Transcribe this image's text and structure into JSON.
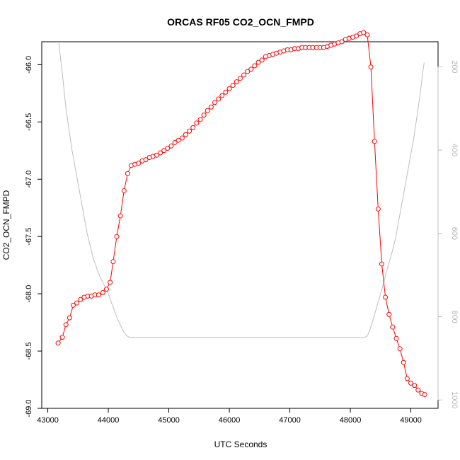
{
  "chart_data": {
    "type": "line",
    "title": "ORCAS RF05 CO2_OCN_FMPD",
    "xlabel": "UTC Seconds",
    "ylabel": "CO2_OCN_FMPD",
    "xlim": [
      42900,
      49450
    ],
    "ylim": [
      -69.0,
      -65.8
    ],
    "x_ticks": [
      43000,
      44000,
      45000,
      46000,
      47000,
      48000,
      49000
    ],
    "y_ticks": [
      -69.0,
      -68.5,
      -68.0,
      -67.5,
      -67.0,
      -66.5,
      -66.0
    ],
    "y_tick_labels": [
      "-69.0",
      "-68.5",
      "-68.0",
      "-67.5",
      "-67.0",
      "-66.5",
      "-66.0"
    ],
    "y2_lim": [
      1020,
      140
    ],
    "y2_ticks": [
      200,
      400,
      600,
      800,
      1000
    ],
    "grid": false,
    "colors": {
      "series": "#ff0000",
      "secondary": "#bebebe",
      "axis": "#000000",
      "secondary_axis_text": "#b8b8b8"
    },
    "series": [
      {
        "marker": "open-circle",
        "x": [
          43170,
          43240,
          43300,
          43360,
          43420,
          43480,
          43540,
          43600,
          43660,
          43720,
          43780,
          43840,
          43910,
          43970,
          44030,
          44080,
          44140,
          44200,
          44260,
          44320,
          44380,
          44440,
          44500,
          44560,
          44620,
          44680,
          44740,
          44800,
          44860,
          44920,
          44980,
          45040,
          45100,
          45160,
          45220,
          45280,
          45340,
          45400,
          45460,
          45520,
          45580,
          45640,
          45700,
          45760,
          45820,
          45880,
          45940,
          46000,
          46060,
          46120,
          46180,
          46240,
          46300,
          46360,
          46420,
          46480,
          46540,
          46600,
          46660,
          46720,
          46780,
          46840,
          46900,
          46960,
          47020,
          47080,
          47140,
          47200,
          47260,
          47320,
          47380,
          47440,
          47500,
          47560,
          47620,
          47680,
          47740,
          47800,
          47860,
          47920,
          47980,
          48040,
          48100,
          48160,
          48220,
          48280,
          48340,
          48400,
          48460,
          48520,
          48580,
          48640,
          48700,
          48760,
          48820,
          48880,
          48940,
          49000,
          49060,
          49120,
          49180,
          49230
        ],
        "y": [
          -68.43,
          -68.38,
          -68.27,
          -68.21,
          -68.1,
          -68.08,
          -68.05,
          -68.03,
          -68.02,
          -68.02,
          -68.01,
          -68.01,
          -67.99,
          -67.96,
          -67.9,
          -67.72,
          -67.5,
          -67.32,
          -67.1,
          -66.95,
          -66.88,
          -66.87,
          -66.86,
          -66.84,
          -66.83,
          -66.81,
          -66.8,
          -66.79,
          -66.77,
          -66.75,
          -66.73,
          -66.71,
          -66.68,
          -66.66,
          -66.64,
          -66.61,
          -66.58,
          -66.55,
          -66.51,
          -66.48,
          -66.44,
          -66.4,
          -66.37,
          -66.33,
          -66.3,
          -66.27,
          -66.24,
          -66.21,
          -66.18,
          -66.15,
          -66.12,
          -66.09,
          -66.06,
          -66.04,
          -66.01,
          -65.98,
          -65.96,
          -65.93,
          -65.92,
          -65.91,
          -65.9,
          -65.89,
          -65.88,
          -65.87,
          -65.87,
          -65.86,
          -65.86,
          -65.85,
          -65.85,
          -65.85,
          -65.85,
          -65.85,
          -65.85,
          -65.85,
          -65.84,
          -65.83,
          -65.82,
          -65.81,
          -65.8,
          -65.78,
          -65.77,
          -65.76,
          -65.75,
          -65.73,
          -65.72,
          -65.74,
          -66.02,
          -66.67,
          -67.26,
          -67.74,
          -68.03,
          -68.18,
          -68.29,
          -68.39,
          -68.48,
          -68.6,
          -68.74,
          -68.78,
          -68.8,
          -68.84,
          -68.87,
          -68.88
        ]
      },
      {
        "axis": "right",
        "style": "line",
        "x": [
          43180,
          43250,
          43300,
          43350,
          43400,
          43450,
          43500,
          43550,
          43600,
          43650,
          43700,
          43750,
          43800,
          43850,
          43900,
          43950,
          44000,
          44050,
          44100,
          44150,
          44200,
          44250,
          44300,
          44330,
          44360,
          44400,
          45000,
          46000,
          47000,
          47500,
          48000,
          48200,
          48270,
          48300,
          48350,
          48400,
          48450,
          48500,
          48550,
          48600,
          48650,
          48700,
          48750,
          48800,
          48850,
          48900,
          48950,
          49000,
          49050,
          49100,
          49150,
          49200,
          49220
        ],
        "y": [
          140,
          230,
          300,
          350,
          400,
          440,
          480,
          520,
          560,
          600,
          630,
          660,
          680,
          700,
          715,
          730,
          745,
          765,
          785,
          805,
          820,
          835,
          845,
          848,
          850,
          850,
          850,
          850,
          850,
          850,
          850,
          850,
          848,
          840,
          820,
          795,
          770,
          745,
          720,
          690,
          665,
          640,
          610,
          570,
          530,
          490,
          450,
          410,
          370,
          320,
          270,
          210,
          190
        ]
      }
    ]
  }
}
